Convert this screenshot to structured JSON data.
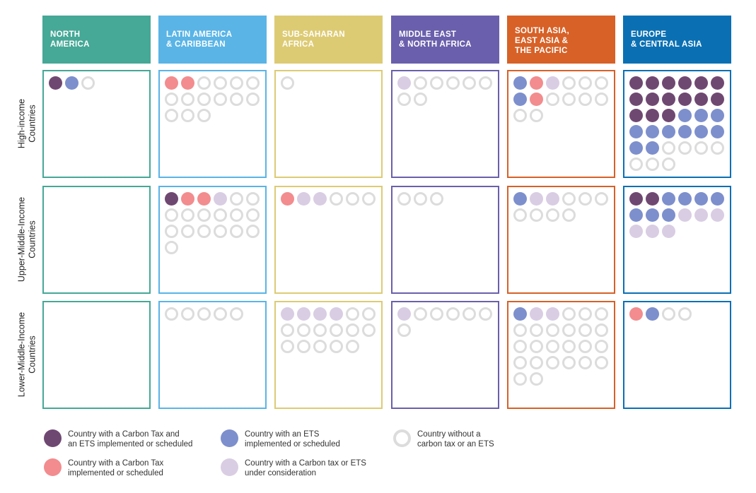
{
  "colors": {
    "ctx": "#6f4872",
    "ets": "#7d8fcc",
    "tax": "#f28c8e",
    "cons": "#d9cde3",
    "none": "#dcdcdc"
  },
  "regions": [
    {
      "key": "na",
      "label": "NORTH\nAMERICA",
      "color": "#46a896"
    },
    {
      "key": "lac",
      "label": "LATIN AMERICA\n& CARIBBEAN",
      "color": "#5ab4e6"
    },
    {
      "key": "ssa",
      "label": "SUB-SAHARAN\nAFRICA",
      "color": "#ddcb74"
    },
    {
      "key": "mena",
      "label": "MIDDLE EAST\n& NORTH AFRICA",
      "color": "#6a5fac"
    },
    {
      "key": "saeap",
      "label": "SOUTH ASIA,\nEAST ASIA &\nTHE PACIFIC",
      "color": "#d76127"
    },
    {
      "key": "eca",
      "label": "EUROPE\n& CENTRAL ASIA",
      "color": "#0a70b3"
    }
  ],
  "income_groups": [
    {
      "key": "high",
      "label": "High-income\nCountries"
    },
    {
      "key": "upper",
      "label": "Upper-Middle-Income\nCountries"
    },
    {
      "key": "lower",
      "label": "Lower-Middle-Income\nCountries"
    }
  ],
  "legend": [
    {
      "key": "ctx",
      "label": "Country with a Carbon Tax and\nan ETS implemented or scheduled"
    },
    {
      "key": "ets",
      "label": "Country with an ETS\nimplemented or scheduled"
    },
    {
      "key": "none",
      "label": "Country without a\ncarbon tax or an ETS"
    },
    {
      "key": "tax",
      "label": "Country with a Carbon Tax\nimplemented or scheduled"
    },
    {
      "key": "cons",
      "label": "Country with a Carbon tax or ETS\nunder consideration"
    }
  ],
  "chart_data": {
    "type": "table",
    "categories_x": [
      "NORTH AMERICA",
      "LATIN AMERICA & CARIBBEAN",
      "SUB-SAHARAN AFRICA",
      "MIDDLE EAST & NORTH AFRICA",
      "SOUTH ASIA, EAST ASIA & THE PACIFIC",
      "EUROPE & CENTRAL ASIA"
    ],
    "categories_y": [
      "High-income Countries",
      "Upper-Middle-Income Countries",
      "Lower-Middle-Income Countries"
    ],
    "cells": {
      "high": {
        "na": {
          "ctx": 1,
          "ets": 1,
          "tax": 0,
          "cons": 0,
          "none": 1
        },
        "lac": {
          "ctx": 0,
          "ets": 0,
          "tax": 2,
          "cons": 0,
          "none": 13
        },
        "ssa": {
          "ctx": 0,
          "ets": 0,
          "tax": 0,
          "cons": 0,
          "none": 1
        },
        "mena": {
          "ctx": 0,
          "ets": 0,
          "tax": 0,
          "cons": 1,
          "none": 7
        },
        "saeap": {
          "sequence": [
            "ets",
            "tax",
            "cons",
            "none",
            "none",
            "none",
            "ets",
            "tax",
            "none",
            "none",
            "none",
            "none",
            "none",
            "none"
          ]
        },
        "eca": {
          "ctx": 15,
          "ets": 11,
          "tax": 0,
          "cons": 0,
          "none": 7
        }
      },
      "upper": {
        "na": {
          "ctx": 0,
          "ets": 0,
          "tax": 0,
          "cons": 0,
          "none": 0
        },
        "lac": {
          "ctx": 1,
          "ets": 0,
          "tax": 2,
          "cons": 1,
          "none": 15
        },
        "ssa": {
          "ctx": 0,
          "ets": 0,
          "tax": 1,
          "cons": 2,
          "none": 3
        },
        "mena": {
          "ctx": 0,
          "ets": 0,
          "tax": 0,
          "cons": 0,
          "none": 3
        },
        "saeap": {
          "ctx": 0,
          "ets": 1,
          "tax": 0,
          "cons": 2,
          "none": 7
        },
        "eca": {
          "ctx": 2,
          "ets": 7,
          "tax": 0,
          "cons": 6,
          "none": 0
        }
      },
      "lower": {
        "na": {
          "ctx": 0,
          "ets": 0,
          "tax": 0,
          "cons": 0,
          "none": 0
        },
        "lac": {
          "ctx": 0,
          "ets": 0,
          "tax": 0,
          "cons": 0,
          "none": 5
        },
        "ssa": {
          "ctx": 0,
          "ets": 0,
          "tax": 0,
          "cons": 4,
          "none": 13
        },
        "mena": {
          "ctx": 0,
          "ets": 0,
          "tax": 0,
          "cons": 1,
          "none": 6
        },
        "saeap": {
          "ctx": 0,
          "ets": 1,
          "tax": 0,
          "cons": 2,
          "none": 23
        },
        "eca": {
          "ctx": 0,
          "ets": 1,
          "tax": 1,
          "cons": 0,
          "none": 2
        }
      }
    }
  }
}
